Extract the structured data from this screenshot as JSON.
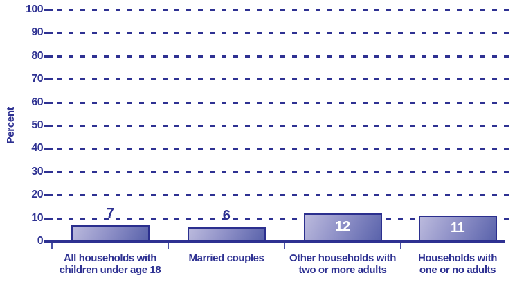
{
  "chart_data": {
    "type": "bar",
    "title": "",
    "ylabel": "Percent",
    "xlabel": "",
    "categories": [
      [
        "All households with",
        "children under age 18"
      ],
      [
        "Married couples"
      ],
      [
        "Other households with",
        "two or more adults"
      ],
      [
        "Households with",
        "one or no adults"
      ]
    ],
    "values": [
      7,
      6,
      12,
      11
    ],
    "value_labels": [
      "7",
      "6",
      "12",
      "11"
    ],
    "value_label_placement": [
      "above",
      "above",
      "inside",
      "inside"
    ],
    "yticks": [
      0,
      10,
      20,
      30,
      40,
      50,
      60,
      70,
      80,
      90,
      100
    ],
    "ylim": [
      0,
      100
    ],
    "grid": "horizontal-dashed",
    "legend": "none",
    "colors": {
      "axis_text": "#2e3192",
      "gridline": "#2e3192",
      "baseline": "#2e3192",
      "bar_gradient_light": "#bbbadd",
      "bar_gradient_dark": "#5a63ab",
      "bar_border": "#2b2f8e",
      "value_label_above": "#2e3192",
      "value_label_inside": "#ffffff",
      "background": "#ffffff"
    }
  }
}
